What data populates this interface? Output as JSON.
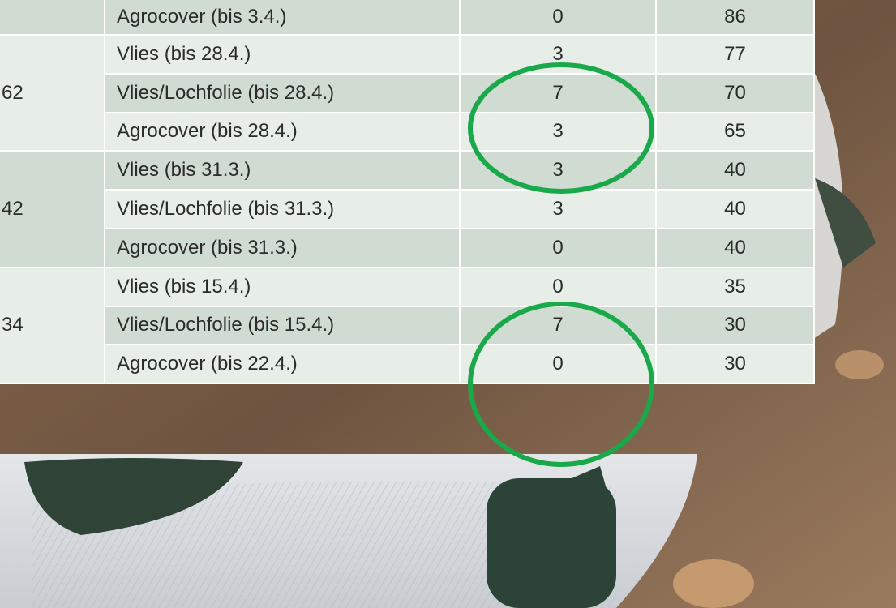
{
  "table": {
    "groups": [
      {
        "rows": [
          [
            "Agrocover (bis 3.4.)",
            0,
            86
          ]
        ]
      },
      {
        "label": "62",
        "rows": [
          [
            "Vlies (bis 28.4.)",
            3,
            77
          ],
          [
            "Vlies/Lochfolie (bis 28.4.)",
            7,
            70
          ],
          [
            "Agrocover (bis 28.4.)",
            3,
            65
          ]
        ]
      },
      {
        "label": "42",
        "rows": [
          [
            "Vlies (bis 31.3.)",
            3,
            40
          ],
          [
            "Vlies/Lochfolie (bis 31.3.)",
            3,
            40
          ],
          [
            "Agrocover (bis 31.3.)",
            0,
            40
          ]
        ]
      },
      {
        "label": "34",
        "rows": [
          [
            "Vlies (bis 15.4.)",
            0,
            35
          ],
          [
            "Vlies/Lochfolie (bis 15.4.)",
            7,
            30
          ],
          [
            "Agrocover (bis 22.4.)",
            0,
            30
          ]
        ]
      }
    ]
  }
}
